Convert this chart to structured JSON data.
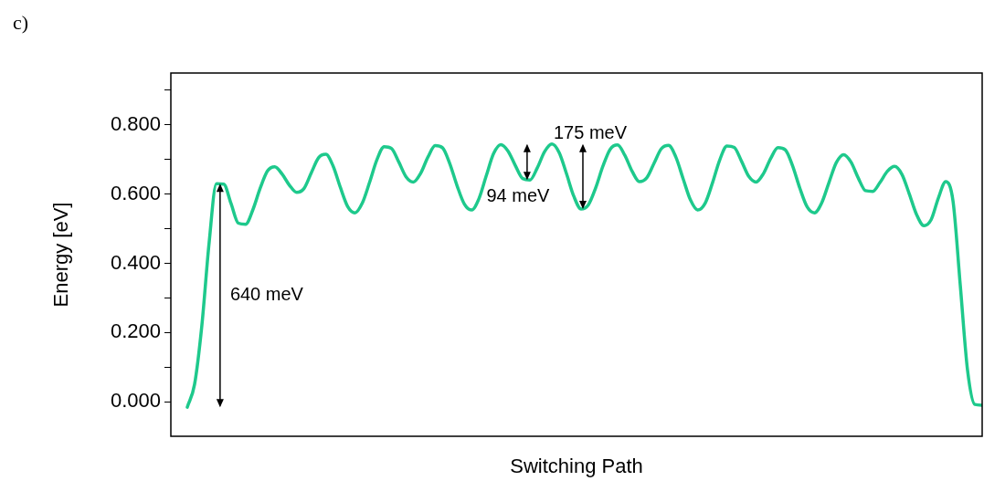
{
  "chart_data": {
    "type": "line",
    "title": "c)",
    "xlabel": "Switching Path",
    "ylabel": "Energy [eV]",
    "categories": [
      null,
      null,
      null,
      null,
      null,
      null,
      null,
      null,
      null,
      null,
      null,
      null,
      null,
      null,
      null,
      null,
      null,
      null,
      null,
      null,
      null,
      null,
      null,
      null,
      null,
      null,
      null,
      null,
      null,
      null,
      null,
      null,
      null,
      null,
      null,
      null,
      null,
      null,
      null,
      null,
      null,
      null,
      null,
      null,
      null,
      null,
      null,
      null,
      null,
      null,
      null,
      null,
      null,
      null,
      null,
      null,
      null,
      null,
      null,
      null,
      null,
      null,
      null,
      null,
      null,
      null,
      null,
      null,
      null,
      null,
      null,
      null,
      null,
      null,
      null,
      null,
      null,
      null,
      null,
      null,
      null,
      null,
      null,
      null,
      null,
      null,
      null,
      null,
      null,
      null,
      null,
      null,
      null,
      null,
      null,
      null,
      null,
      null,
      null,
      null,
      null,
      null,
      null,
      null,
      null,
      null,
      null,
      null,
      null,
      null
    ],
    "series": [
      {
        "color": "#1ec98c",
        "values": [
          -0.016,
          0.05,
          0.22,
          0.46,
          0.63,
          0.629,
          0.573,
          0.516,
          0.513,
          0.555,
          0.617,
          0.667,
          0.679,
          0.658,
          0.626,
          0.605,
          0.616,
          0.661,
          0.705,
          0.715,
          0.681,
          0.619,
          0.564,
          0.546,
          0.574,
          0.634,
          0.699,
          0.737,
          0.732,
          0.693,
          0.65,
          0.635,
          0.66,
          0.707,
          0.74,
          0.734,
          0.688,
          0.624,
          0.571,
          0.554,
          0.587,
          0.653,
          0.717,
          0.743,
          0.724,
          0.682,
          0.645,
          0.641,
          0.676,
          0.723,
          0.745,
          0.72,
          0.659,
          0.594,
          0.557,
          0.569,
          0.618,
          0.681,
          0.73,
          0.742,
          0.712,
          0.666,
          0.636,
          0.647,
          0.689,
          0.731,
          0.741,
          0.707,
          0.644,
          0.583,
          0.554,
          0.573,
          0.631,
          0.698,
          0.739,
          0.735,
          0.695,
          0.651,
          0.635,
          0.659,
          0.703,
          0.734,
          0.728,
          0.682,
          0.617,
          0.563,
          0.546,
          0.575,
          0.634,
          0.691,
          0.714,
          0.693,
          0.647,
          0.61,
          0.608,
          0.634,
          0.666,
          0.68,
          0.657,
          0.601,
          0.541,
          0.509,
          0.526,
          0.589,
          0.636,
          0.58,
          0.336,
          0.09,
          -0.008,
          -0.01
        ]
      }
    ],
    "ylim": [
      -0.1,
      0.95
    ],
    "yticks": [
      {
        "value": 0,
        "label": "0.000"
      },
      {
        "value": 0.1,
        "label": null
      },
      {
        "value": 0.2,
        "label": "0.200"
      },
      {
        "value": 0.3,
        "label": null
      },
      {
        "value": 0.4,
        "label": "0.400"
      },
      {
        "value": 0.5,
        "label": null
      },
      {
        "value": 0.6,
        "label": "0.600"
      },
      {
        "value": 0.7,
        "label": null
      },
      {
        "value": 0.8,
        "label": "0.800"
      },
      {
        "value": 0.9,
        "label": null
      }
    ],
    "tick_labels": "y",
    "marker": "none",
    "line_style": "solid",
    "annotations": [
      "640 meV",
      "94 meV",
      "175 meV"
    ]
  }
}
